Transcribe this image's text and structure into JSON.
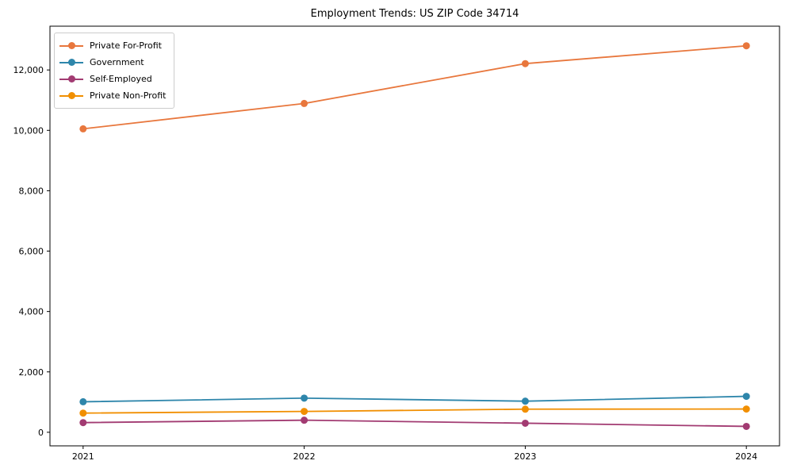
{
  "title": "Employment Trends: US ZIP Code 34714",
  "chart_data": {
    "type": "line",
    "title": "Employment Trends: US ZIP Code 34714",
    "x": [
      2021,
      2022,
      2023,
      2024
    ],
    "xtick_labels": [
      "2021",
      "2022",
      "2023",
      "2024"
    ],
    "series": [
      {
        "name": "Private For-Profit",
        "color": "#E8773D",
        "values": [
          10050,
          10890,
          12210,
          12800
        ]
      },
      {
        "name": "Government",
        "color": "#2E86AB",
        "values": [
          1010,
          1130,
          1030,
          1190
        ]
      },
      {
        "name": "Self-Employed",
        "color": "#A23B72",
        "values": [
          320,
          400,
          300,
          195
        ]
      },
      {
        "name": "Private Non-Profit",
        "color": "#F18F01",
        "values": [
          635,
          690,
          765,
          770
        ]
      }
    ],
    "yticks": [
      0,
      2000,
      4000,
      6000,
      8000,
      10000,
      12000
    ],
    "ytick_labels": [
      "0",
      "2,000",
      "4,000",
      "6,000",
      "8,000",
      "10,000",
      "12,000"
    ],
    "ylim": [
      -450,
      13450
    ],
    "xlim": [
      -0.15,
      3.15
    ],
    "grid": false,
    "legend_position": "upper-left",
    "axis_color": "#000000",
    "tick_label_color": "#000000",
    "marker": "circle",
    "background": "#ffffff"
  }
}
